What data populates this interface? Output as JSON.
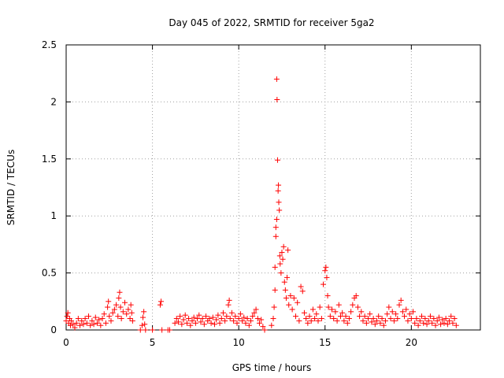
{
  "chart_data": {
    "type": "scatter",
    "title": "Day 045 of 2022, SRMTID for receiver 5ga2",
    "xlabel": "GPS time / hours",
    "ylabel": "SRMTID / TECUs",
    "xlim": [
      0,
      24
    ],
    "ylim": [
      0,
      2.5
    ],
    "grid": true,
    "x_ticks": [
      0,
      5,
      10,
      15,
      20
    ],
    "x_tick_labels": [
      "0",
      "5",
      "10",
      "15",
      "20"
    ],
    "y_ticks": [
      0,
      0.5,
      1,
      1.5,
      2,
      2.5
    ],
    "y_tick_labels": [
      "0",
      "0.5",
      "1",
      "1.5",
      "2",
      "2.5"
    ],
    "marker": "+",
    "marker_color": "#ff0000",
    "series": [
      {
        "name": "SRMTID",
        "points": [
          [
            0.0,
            0.08
          ],
          [
            0.05,
            0.12
          ],
          [
            0.1,
            0.15
          ],
          [
            0.15,
            0.06
          ],
          [
            0.2,
            0.1
          ],
          [
            0.25,
            0.04
          ],
          [
            0.3,
            0.08
          ],
          [
            0.4,
            0.05
          ],
          [
            0.5,
            0.02
          ],
          [
            0.6,
            0.06
          ],
          [
            0.7,
            0.1
          ],
          [
            0.8,
            0.04
          ],
          [
            0.9,
            0.08
          ],
          [
            1.0,
            0.05
          ],
          [
            1.1,
            0.1
          ],
          [
            1.2,
            0.06
          ],
          [
            1.3,
            0.12
          ],
          [
            1.4,
            0.04
          ],
          [
            1.5,
            0.08
          ],
          [
            1.6,
            0.05
          ],
          [
            1.7,
            0.11
          ],
          [
            1.8,
            0.06
          ],
          [
            1.9,
            0.09
          ],
          [
            2.0,
            0.04
          ],
          [
            2.1,
            0.1
          ],
          [
            2.2,
            0.14
          ],
          [
            2.3,
            0.06
          ],
          [
            2.4,
            0.2
          ],
          [
            2.45,
            0.25
          ],
          [
            2.5,
            0.12
          ],
          [
            2.6,
            0.08
          ],
          [
            2.7,
            0.15
          ],
          [
            2.8,
            0.18
          ],
          [
            2.9,
            0.22
          ],
          [
            3.0,
            0.12
          ],
          [
            3.05,
            0.28
          ],
          [
            3.1,
            0.33
          ],
          [
            3.15,
            0.2
          ],
          [
            3.2,
            0.1
          ],
          [
            3.3,
            0.16
          ],
          [
            3.4,
            0.24
          ],
          [
            3.5,
            0.14
          ],
          [
            3.6,
            0.18
          ],
          [
            3.7,
            0.1
          ],
          [
            3.75,
            0.22
          ],
          [
            3.8,
            0.15
          ],
          [
            3.85,
            0.08
          ],
          [
            4.3,
            0.0
          ],
          [
            4.4,
            0.04
          ],
          [
            4.45,
            0.11
          ],
          [
            4.5,
            0.16
          ],
          [
            4.55,
            0.05
          ],
          [
            4.6,
            0.0
          ],
          [
            5.0,
            0.0
          ],
          [
            5.45,
            0.22
          ],
          [
            5.5,
            0.25
          ],
          [
            5.55,
            0.0
          ],
          [
            5.9,
            0.0
          ],
          [
            6.0,
            0.0
          ],
          [
            6.3,
            0.06
          ],
          [
            6.4,
            0.1
          ],
          [
            6.5,
            0.07
          ],
          [
            6.6,
            0.12
          ],
          [
            6.7,
            0.05
          ],
          [
            6.8,
            0.09
          ],
          [
            6.9,
            0.13
          ],
          [
            7.0,
            0.06
          ],
          [
            7.1,
            0.1
          ],
          [
            7.2,
            0.04
          ],
          [
            7.3,
            0.08
          ],
          [
            7.4,
            0.11
          ],
          [
            7.5,
            0.06
          ],
          [
            7.6,
            0.1
          ],
          [
            7.7,
            0.13
          ],
          [
            7.8,
            0.07
          ],
          [
            7.9,
            0.1
          ],
          [
            8.0,
            0.05
          ],
          [
            8.1,
            0.12
          ],
          [
            8.2,
            0.08
          ],
          [
            8.3,
            0.1
          ],
          [
            8.4,
            0.06
          ],
          [
            8.5,
            0.11
          ],
          [
            8.6,
            0.05
          ],
          [
            8.7,
            0.09
          ],
          [
            8.8,
            0.13
          ],
          [
            8.9,
            0.06
          ],
          [
            9.0,
            0.1
          ],
          [
            9.1,
            0.15
          ],
          [
            9.2,
            0.08
          ],
          [
            9.3,
            0.12
          ],
          [
            9.4,
            0.22
          ],
          [
            9.45,
            0.26
          ],
          [
            9.5,
            0.1
          ],
          [
            9.6,
            0.15
          ],
          [
            9.7,
            0.08
          ],
          [
            9.8,
            0.12
          ],
          [
            9.9,
            0.06
          ],
          [
            10.0,
            0.1
          ],
          [
            10.1,
            0.14
          ],
          [
            10.2,
            0.08
          ],
          [
            10.3,
            0.11
          ],
          [
            10.4,
            0.06
          ],
          [
            10.5,
            0.1
          ],
          [
            10.6,
            0.04
          ],
          [
            10.7,
            0.08
          ],
          [
            10.8,
            0.12
          ],
          [
            10.9,
            0.15
          ],
          [
            11.0,
            0.18
          ],
          [
            11.1,
            0.1
          ],
          [
            11.2,
            0.06
          ],
          [
            11.3,
            0.09
          ],
          [
            11.4,
            0.03
          ],
          [
            11.5,
            0.0
          ],
          [
            11.9,
            0.04
          ],
          [
            12.0,
            0.1
          ],
          [
            12.05,
            0.2
          ],
          [
            12.1,
            0.35
          ],
          [
            12.1,
            0.55
          ],
          [
            12.15,
            0.82
          ],
          [
            12.15,
            0.9
          ],
          [
            12.2,
            0.97
          ],
          [
            12.2,
            2.2
          ],
          [
            12.22,
            2.02
          ],
          [
            12.25,
            1.49
          ],
          [
            12.28,
            1.22
          ],
          [
            12.3,
            1.27
          ],
          [
            12.32,
            1.12
          ],
          [
            12.35,
            1.05
          ],
          [
            12.38,
            0.65
          ],
          [
            12.4,
            0.58
          ],
          [
            12.45,
            0.5
          ],
          [
            12.5,
            0.68
          ],
          [
            12.55,
            0.62
          ],
          [
            12.6,
            0.73
          ],
          [
            12.65,
            0.42
          ],
          [
            12.7,
            0.35
          ],
          [
            12.75,
            0.28
          ],
          [
            12.8,
            0.46
          ],
          [
            12.85,
            0.7
          ],
          [
            12.9,
            0.22
          ],
          [
            13.0,
            0.3
          ],
          [
            13.1,
            0.18
          ],
          [
            13.2,
            0.28
          ],
          [
            13.3,
            0.12
          ],
          [
            13.4,
            0.24
          ],
          [
            13.5,
            0.08
          ],
          [
            13.6,
            0.38
          ],
          [
            13.7,
            0.34
          ],
          [
            13.8,
            0.15
          ],
          [
            13.9,
            0.1
          ],
          [
            14.0,
            0.06
          ],
          [
            14.1,
            0.12
          ],
          [
            14.2,
            0.08
          ],
          [
            14.3,
            0.18
          ],
          [
            14.4,
            0.1
          ],
          [
            14.5,
            0.14
          ],
          [
            14.6,
            0.08
          ],
          [
            14.7,
            0.2
          ],
          [
            14.8,
            0.1
          ],
          [
            14.9,
            0.4
          ],
          [
            15.0,
            0.52
          ],
          [
            15.05,
            0.55
          ],
          [
            15.1,
            0.46
          ],
          [
            15.15,
            0.3
          ],
          [
            15.2,
            0.2
          ],
          [
            15.3,
            0.12
          ],
          [
            15.4,
            0.18
          ],
          [
            15.5,
            0.1
          ],
          [
            15.6,
            0.16
          ],
          [
            15.7,
            0.08
          ],
          [
            15.8,
            0.22
          ],
          [
            15.9,
            0.12
          ],
          [
            16.0,
            0.15
          ],
          [
            16.1,
            0.08
          ],
          [
            16.2,
            0.12
          ],
          [
            16.3,
            0.06
          ],
          [
            16.4,
            0.1
          ],
          [
            16.5,
            0.16
          ],
          [
            16.6,
            0.22
          ],
          [
            16.7,
            0.28
          ],
          [
            16.8,
            0.3
          ],
          [
            16.9,
            0.2
          ],
          [
            17.0,
            0.12
          ],
          [
            17.1,
            0.16
          ],
          [
            17.2,
            0.08
          ],
          [
            17.3,
            0.12
          ],
          [
            17.4,
            0.06
          ],
          [
            17.5,
            0.1
          ],
          [
            17.6,
            0.14
          ],
          [
            17.7,
            0.07
          ],
          [
            17.8,
            0.1
          ],
          [
            17.9,
            0.05
          ],
          [
            18.0,
            0.08
          ],
          [
            18.1,
            0.12
          ],
          [
            18.2,
            0.06
          ],
          [
            18.3,
            0.1
          ],
          [
            18.4,
            0.04
          ],
          [
            18.5,
            0.08
          ],
          [
            18.6,
            0.14
          ],
          [
            18.7,
            0.2
          ],
          [
            18.8,
            0.1
          ],
          [
            18.9,
            0.16
          ],
          [
            19.0,
            0.08
          ],
          [
            19.1,
            0.14
          ],
          [
            19.2,
            0.1
          ],
          [
            19.3,
            0.22
          ],
          [
            19.4,
            0.26
          ],
          [
            19.5,
            0.16
          ],
          [
            19.6,
            0.12
          ],
          [
            19.7,
            0.18
          ],
          [
            19.8,
            0.08
          ],
          [
            19.9,
            0.14
          ],
          [
            20.0,
            0.1
          ],
          [
            20.1,
            0.16
          ],
          [
            20.2,
            0.06
          ],
          [
            20.3,
            0.1
          ],
          [
            20.4,
            0.04
          ],
          [
            20.5,
            0.08
          ],
          [
            20.6,
            0.12
          ],
          [
            20.7,
            0.06
          ],
          [
            20.8,
            0.1
          ],
          [
            20.9,
            0.05
          ],
          [
            21.0,
            0.08
          ],
          [
            21.1,
            0.12
          ],
          [
            21.2,
            0.06
          ],
          [
            21.3,
            0.1
          ],
          [
            21.4,
            0.04
          ],
          [
            21.5,
            0.08
          ],
          [
            21.6,
            0.11
          ],
          [
            21.7,
            0.05
          ],
          [
            21.8,
            0.09
          ],
          [
            21.9,
            0.06
          ],
          [
            22.0,
            0.1
          ],
          [
            22.1,
            0.05
          ],
          [
            22.2,
            0.08
          ],
          [
            22.3,
            0.12
          ],
          [
            22.4,
            0.06
          ],
          [
            22.5,
            0.1
          ],
          [
            22.6,
            0.04
          ]
        ]
      }
    ]
  }
}
